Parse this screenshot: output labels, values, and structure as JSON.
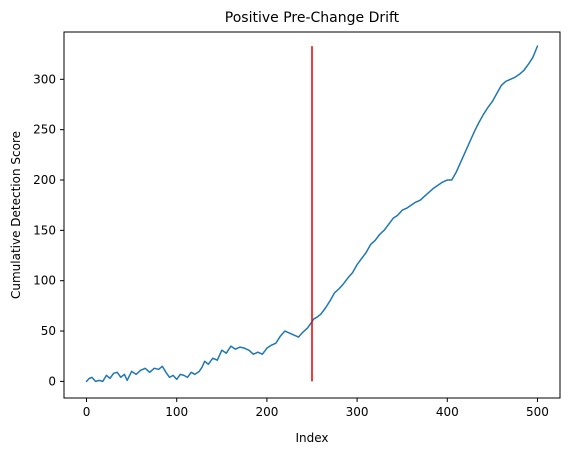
{
  "chart_data": {
    "type": "line",
    "title": "Positive Pre-Change Drift",
    "xlabel": "Index",
    "ylabel": "Cumulative Detection Score",
    "xlim": [
      -25,
      525
    ],
    "ylim": [
      -16.5,
      347
    ],
    "xticks": [
      0,
      100,
      200,
      300,
      400,
      500
    ],
    "yticks": [
      0,
      50,
      100,
      150,
      200,
      250,
      300
    ],
    "grid": false,
    "series": [
      {
        "color": "#1f77b4",
        "points": [
          [
            0,
            0
          ],
          [
            3,
            3
          ],
          [
            6,
            4
          ],
          [
            10,
            0
          ],
          [
            14,
            1
          ],
          [
            18,
            0
          ],
          [
            22,
            6
          ],
          [
            26,
            3
          ],
          [
            30,
            8
          ],
          [
            34,
            9
          ],
          [
            38,
            4
          ],
          [
            42,
            7
          ],
          [
            45,
            1
          ],
          [
            50,
            10
          ],
          [
            55,
            7
          ],
          [
            60,
            11
          ],
          [
            65,
            13
          ],
          [
            70,
            9
          ],
          [
            75,
            13
          ],
          [
            80,
            12
          ],
          [
            84,
            15
          ],
          [
            88,
            9
          ],
          [
            92,
            4
          ],
          [
            96,
            6
          ],
          [
            100,
            2
          ],
          [
            104,
            7
          ],
          [
            108,
            6
          ],
          [
            112,
            4
          ],
          [
            116,
            9
          ],
          [
            120,
            7
          ],
          [
            125,
            10
          ],
          [
            128,
            14
          ],
          [
            131,
            20
          ],
          [
            135,
            17
          ],
          [
            140,
            23
          ],
          [
            145,
            21
          ],
          [
            150,
            31
          ],
          [
            155,
            28
          ],
          [
            160,
            35
          ],
          [
            165,
            32
          ],
          [
            170,
            34
          ],
          [
            175,
            33
          ],
          [
            180,
            31
          ],
          [
            185,
            27
          ],
          [
            190,
            29
          ],
          [
            195,
            27
          ],
          [
            200,
            33
          ],
          [
            205,
            36
          ],
          [
            210,
            38
          ],
          [
            215,
            45
          ],
          [
            220,
            50
          ],
          [
            225,
            48
          ],
          [
            230,
            46
          ],
          [
            235,
            44
          ],
          [
            240,
            49
          ],
          [
            245,
            53
          ],
          [
            249,
            58
          ],
          [
            252,
            62
          ],
          [
            256,
            64
          ],
          [
            260,
            67
          ],
          [
            265,
            73
          ],
          [
            270,
            80
          ],
          [
            275,
            88
          ],
          [
            280,
            92
          ],
          [
            285,
            97
          ],
          [
            290,
            103
          ],
          [
            295,
            108
          ],
          [
            300,
            116
          ],
          [
            305,
            122
          ],
          [
            310,
            128
          ],
          [
            315,
            136
          ],
          [
            320,
            140
          ],
          [
            325,
            146
          ],
          [
            330,
            150
          ],
          [
            335,
            156
          ],
          [
            340,
            162
          ],
          [
            345,
            165
          ],
          [
            350,
            170
          ],
          [
            355,
            172
          ],
          [
            360,
            175
          ],
          [
            365,
            178
          ],
          [
            370,
            180
          ],
          [
            375,
            184
          ],
          [
            380,
            188
          ],
          [
            385,
            192
          ],
          [
            390,
            195
          ],
          [
            395,
            198
          ],
          [
            400,
            200
          ],
          [
            405,
            200
          ],
          [
            410,
            208
          ],
          [
            415,
            218
          ],
          [
            420,
            228
          ],
          [
            425,
            238
          ],
          [
            430,
            248
          ],
          [
            435,
            257
          ],
          [
            440,
            265
          ],
          [
            445,
            272
          ],
          [
            450,
            278
          ],
          [
            455,
            286
          ],
          [
            460,
            294
          ],
          [
            465,
            298
          ],
          [
            470,
            300
          ],
          [
            475,
            302
          ],
          [
            480,
            305
          ],
          [
            485,
            309
          ],
          [
            490,
            315
          ],
          [
            495,
            322
          ],
          [
            500,
            333
          ]
        ]
      }
    ],
    "annotations": [
      {
        "type": "vline",
        "x": 250,
        "y_from": 0,
        "y_to": 333,
        "color": "#e60000"
      }
    ]
  }
}
